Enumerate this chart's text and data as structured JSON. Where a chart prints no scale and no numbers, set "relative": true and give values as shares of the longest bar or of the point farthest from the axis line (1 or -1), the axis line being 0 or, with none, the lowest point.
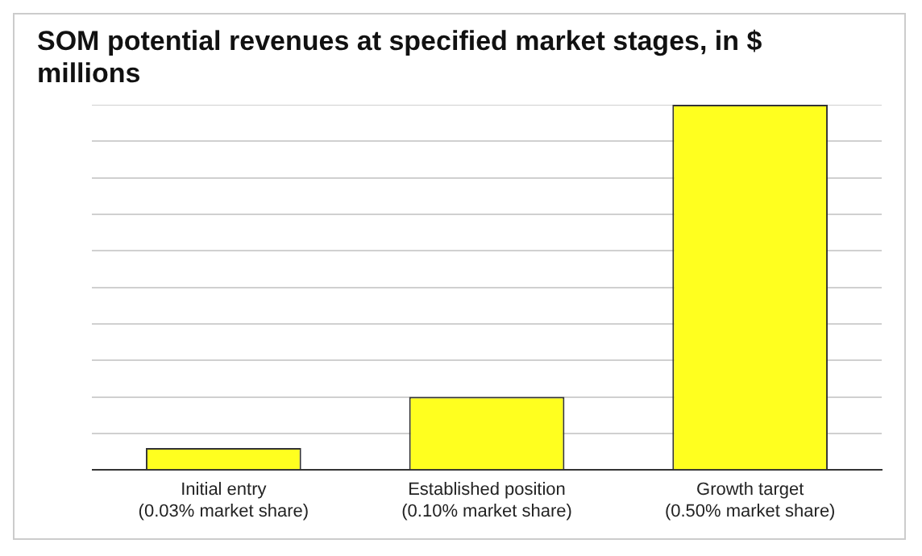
{
  "chart_data": {
    "type": "bar",
    "title": "SOM potential revenues at specified market stages, in $ millions",
    "categories": [
      "Initial entry\n(0.03% market share)",
      "Established position\n(0.10% market share)",
      "Growth target\n(0.50% market share)"
    ],
    "values": [
      0.06,
      0.2,
      1
    ],
    "color": "#ffff1f",
    "relative": true,
    "grid": "y",
    "legend": false
  }
}
